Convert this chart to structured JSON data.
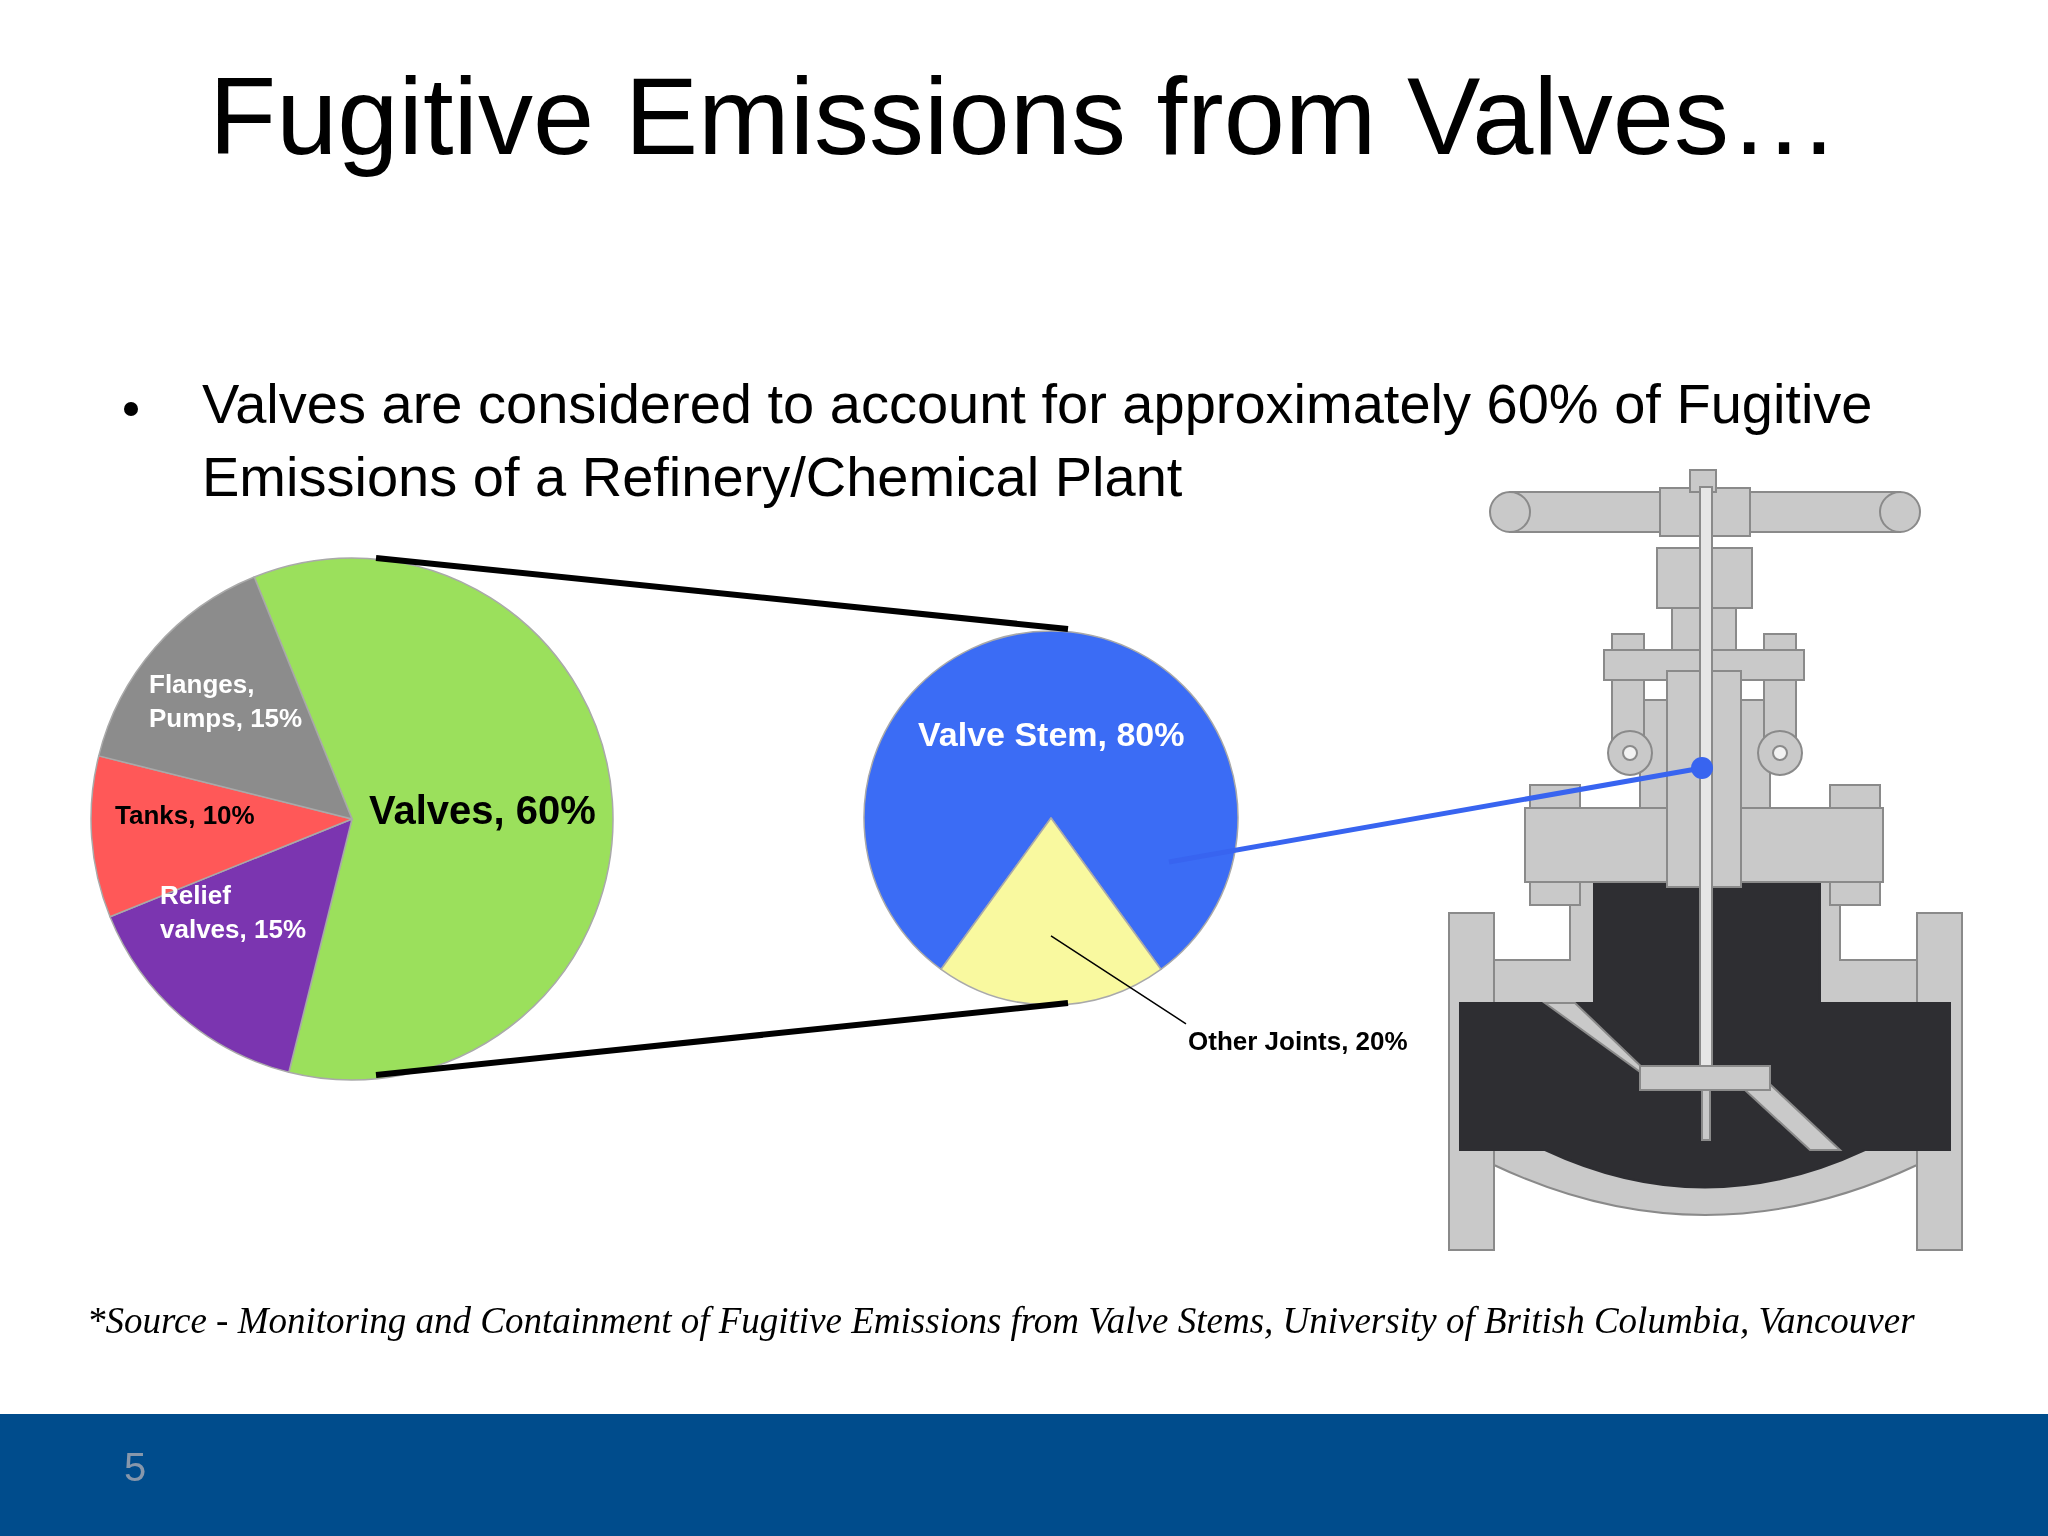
{
  "chart_data": [
    {
      "type": "pie",
      "title": "Fugitive Emissions from Valves…",
      "subtitle": "Valves are considered to account for approximately 60% of Fugitive Emissions of a Refinery/Chemical Plant",
      "categories": [
        "Valves",
        "Relief valves",
        "Tanks",
        "Flanges, Pumps"
      ],
      "values": [
        60,
        15,
        10,
        15
      ],
      "colors": [
        "#9be05c",
        "#7b35b0",
        "#ff5858",
        "#8c8c8c"
      ],
      "value_labels": [
        "60%",
        "15%",
        "10%",
        "15%"
      ],
      "annotations": [
        "*Source - Monitoring and Containment of Fugitive Emissions from Valve Stems, University of British Columbia, Vancouver",
        "5"
      ]
    },
    {
      "type": "pie",
      "categories": [
        "Valve Stem",
        "Other Joints"
      ],
      "values": [
        80,
        20
      ],
      "colors": [
        "#3b6cf5",
        "#f9f99f"
      ],
      "value_labels": [
        "80%",
        "20%"
      ]
    }
  ]
}
